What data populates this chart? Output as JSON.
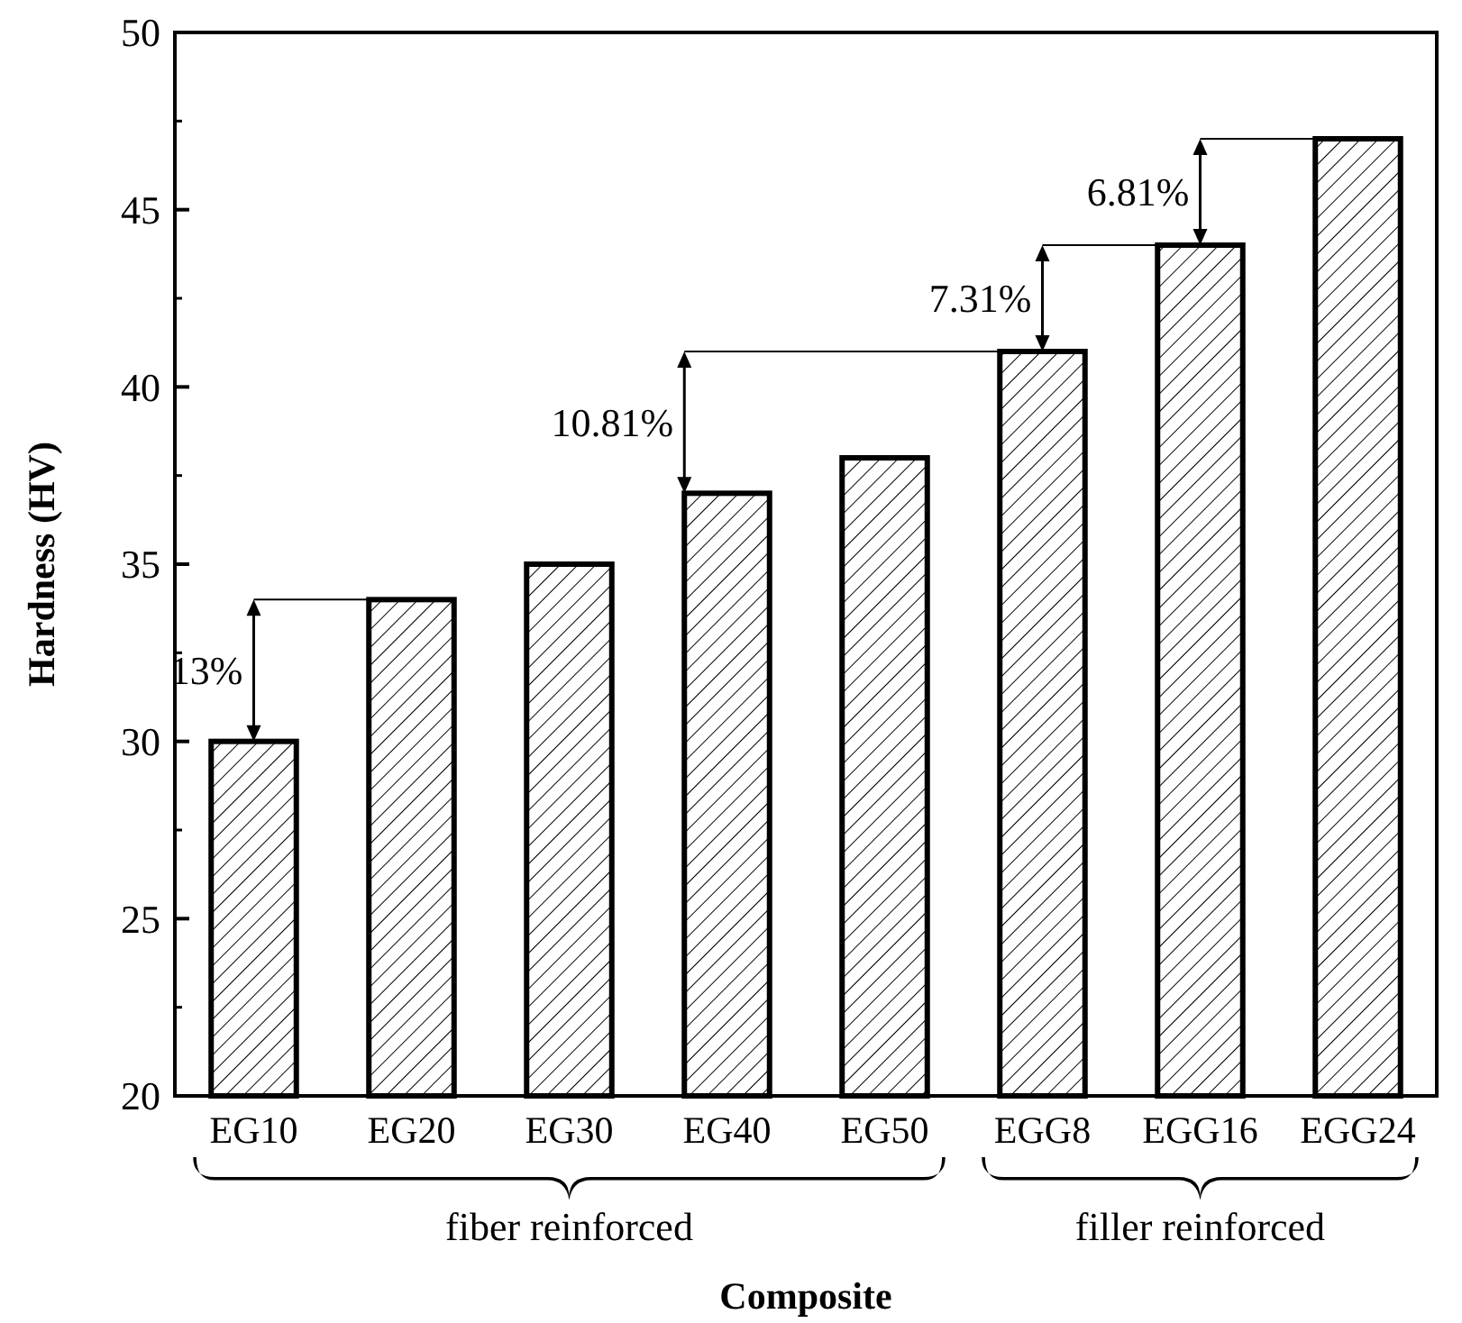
{
  "chart_data": {
    "type": "bar",
    "xlabel": "Composite",
    "ylabel": "Hardness (HV)",
    "categories": [
      "EG10",
      "EG20",
      "EG30",
      "EG40",
      "EG50",
      "EGG8",
      "EGG16",
      "EGG24"
    ],
    "values": [
      30,
      34,
      35,
      37,
      38,
      41,
      44,
      47
    ],
    "color": "#000000",
    "ylim": [
      20,
      50
    ],
    "yticks": [
      20,
      25,
      30,
      35,
      40,
      45,
      50
    ],
    "grid": false,
    "annotations": [
      {
        "text": "13%",
        "x": "EG20",
        "y": 34
      },
      {
        "text": "10.81%",
        "x": "EGG8",
        "y": 41
      },
      {
        "text": "7.31%",
        "x": "EGG16",
        "y": 44
      },
      {
        "text": "6.81%",
        "x": "EGG24",
        "y": 47
      },
      "fiber reinforced",
      "filler reinforced"
    ]
  }
}
